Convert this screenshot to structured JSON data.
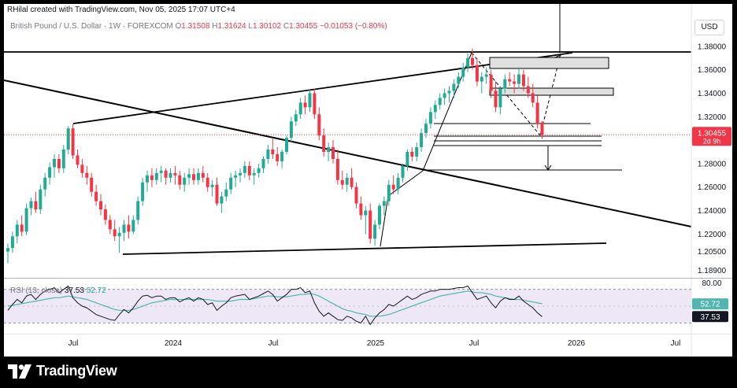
{
  "attribution": "RHilal created with TradingView.com, Nov 05, 2025 17:07 UTC+4",
  "legend": {
    "symbol": "British Pound / U.S. Dollar · 1W · FOREXCOM",
    "open_label": "O",
    "open": "1.31508",
    "high_label": "H",
    "high": "1.31624",
    "low_label": "L",
    "low": "1.30102",
    "close_label": "C",
    "close": "1.30455",
    "change": "−0.01053 (−0.80%)"
  },
  "currency_badge": "USD",
  "price_axis": {
    "ticks": [
      "1.38000",
      "1.36000",
      "1.34000",
      "1.32000",
      "1.28000",
      "1.26000",
      "1.24000",
      "1.22000",
      "1.20500",
      "1.18900"
    ],
    "current_price": "1.30455",
    "countdown": "2d 9h"
  },
  "time_axis": [
    "Jul",
    "2024",
    "Jul",
    "2025",
    "Jul",
    "2026",
    "Jul"
  ],
  "rsi": {
    "label": "RSI (13, close)",
    "value": "37.53",
    "ma_value": "52.72",
    "top_tick": "80.00"
  },
  "colors": {
    "bull": "#22ab94",
    "bear": "#f23645",
    "rsi_line": "#131722",
    "rsi_ma": "#4fb7b0",
    "rsi_band": "#ede7f6",
    "price_line": "#f23645"
  },
  "footer": {
    "brand": "TradingView"
  },
  "chart_data": {
    "type": "candlestick",
    "series_kind": "weekly OHLC",
    "y_axis_range": [
      1.186,
      1.398
    ],
    "current_close": 1.30455,
    "candles": [
      [
        1.205,
        1.212,
        1.195,
        1.208
      ],
      [
        1.208,
        1.222,
        1.204,
        1.218
      ],
      [
        1.218,
        1.232,
        1.212,
        1.228
      ],
      [
        1.228,
        1.236,
        1.218,
        1.222
      ],
      [
        1.222,
        1.246,
        1.219,
        1.242
      ],
      [
        1.242,
        1.251,
        1.236,
        1.248
      ],
      [
        1.248,
        1.256,
        1.238,
        1.241
      ],
      [
        1.241,
        1.262,
        1.237,
        1.258
      ],
      [
        1.258,
        1.272,
        1.252,
        1.268
      ],
      [
        1.268,
        1.281,
        1.262,
        1.277
      ],
      [
        1.277,
        1.288,
        1.268,
        1.284
      ],
      [
        1.284,
        1.288,
        1.272,
        1.276
      ],
      [
        1.276,
        1.296,
        1.272,
        1.292
      ],
      [
        1.292,
        1.312,
        1.288,
        1.31
      ],
      [
        1.31,
        1.314,
        1.284,
        1.287
      ],
      [
        1.287,
        1.292,
        1.276,
        1.279
      ],
      [
        1.279,
        1.284,
        1.268,
        1.272
      ],
      [
        1.272,
        1.278,
        1.262,
        1.268
      ],
      [
        1.268,
        1.272,
        1.252,
        1.256
      ],
      [
        1.256,
        1.262,
        1.244,
        1.248
      ],
      [
        1.248,
        1.254,
        1.236,
        1.241
      ],
      [
        1.241,
        1.245,
        1.228,
        1.232
      ],
      [
        1.232,
        1.236,
        1.22,
        1.224
      ],
      [
        1.224,
        1.232,
        1.214,
        1.218
      ],
      [
        1.218,
        1.226,
        1.204,
        1.221
      ],
      [
        1.221,
        1.232,
        1.214,
        1.228
      ],
      [
        1.228,
        1.236,
        1.216,
        1.222
      ],
      [
        1.222,
        1.236,
        1.22,
        1.232
      ],
      [
        1.232,
        1.252,
        1.228,
        1.248
      ],
      [
        1.248,
        1.268,
        1.244,
        1.264
      ],
      [
        1.264,
        1.274,
        1.256,
        1.27
      ],
      [
        1.27,
        1.276,
        1.26,
        1.266
      ],
      [
        1.266,
        1.276,
        1.262,
        1.272
      ],
      [
        1.272,
        1.278,
        1.264,
        1.274
      ],
      [
        1.274,
        1.276,
        1.262,
        1.268
      ],
      [
        1.268,
        1.276,
        1.264,
        1.272
      ],
      [
        1.272,
        1.278,
        1.262,
        1.27
      ],
      [
        1.27,
        1.274,
        1.258,
        1.262
      ],
      [
        1.262,
        1.272,
        1.256,
        1.268
      ],
      [
        1.268,
        1.276,
        1.262,
        1.271
      ],
      [
        1.271,
        1.276,
        1.262,
        1.266
      ],
      [
        1.266,
        1.276,
        1.262,
        1.272
      ],
      [
        1.272,
        1.278,
        1.264,
        1.268
      ],
      [
        1.268,
        1.272,
        1.256,
        1.26
      ],
      [
        1.26,
        1.266,
        1.252,
        1.262
      ],
      [
        1.262,
        1.268,
        1.244,
        1.246
      ],
      [
        1.246,
        1.256,
        1.238,
        1.252
      ],
      [
        1.252,
        1.264,
        1.248,
        1.258
      ],
      [
        1.258,
        1.272,
        1.254,
        1.268
      ],
      [
        1.268,
        1.274,
        1.26,
        1.27
      ],
      [
        1.27,
        1.276,
        1.264,
        1.272
      ],
      [
        1.272,
        1.282,
        1.268,
        1.278
      ],
      [
        1.278,
        1.282,
        1.266,
        1.27
      ],
      [
        1.27,
        1.276,
        1.262,
        1.272
      ],
      [
        1.272,
        1.28,
        1.268,
        1.276
      ],
      [
        1.276,
        1.286,
        1.272,
        1.284
      ],
      [
        1.284,
        1.296,
        1.28,
        1.292
      ],
      [
        1.292,
        1.302,
        1.284,
        1.288
      ],
      [
        1.288,
        1.294,
        1.278,
        1.282
      ],
      [
        1.282,
        1.292,
        1.276,
        1.29
      ],
      [
        1.29,
        1.304,
        1.288,
        1.302
      ],
      [
        1.302,
        1.32,
        1.298,
        1.316
      ],
      [
        1.316,
        1.326,
        1.312,
        1.322
      ],
      [
        1.322,
        1.336,
        1.318,
        1.332
      ],
      [
        1.332,
        1.338,
        1.322,
        1.328
      ],
      [
        1.328,
        1.343,
        1.324,
        1.34
      ],
      [
        1.34,
        1.344,
        1.318,
        1.322
      ],
      [
        1.322,
        1.328,
        1.3,
        1.304
      ],
      [
        1.304,
        1.31,
        1.286,
        1.29
      ],
      [
        1.29,
        1.298,
        1.282,
        1.294
      ],
      [
        1.294,
        1.3,
        1.28,
        1.284
      ],
      [
        1.284,
        1.292,
        1.262,
        1.266
      ],
      [
        1.266,
        1.274,
        1.258,
        1.262
      ],
      [
        1.262,
        1.272,
        1.256,
        1.268
      ],
      [
        1.268,
        1.276,
        1.258,
        1.26
      ],
      [
        1.26,
        1.264,
        1.242,
        1.246
      ],
      [
        1.246,
        1.252,
        1.232,
        1.236
      ],
      [
        1.236,
        1.244,
        1.22,
        1.24
      ],
      [
        1.24,
        1.246,
        1.212,
        1.216
      ],
      [
        1.216,
        1.232,
        1.21,
        1.228
      ],
      [
        1.228,
        1.246,
        1.224,
        1.244
      ],
      [
        1.244,
        1.252,
        1.236,
        1.248
      ],
      [
        1.248,
        1.266,
        1.244,
        1.262
      ],
      [
        1.262,
        1.27,
        1.254,
        1.258
      ],
      [
        1.258,
        1.272,
        1.254,
        1.268
      ],
      [
        1.268,
        1.28,
        1.264,
        1.278
      ],
      [
        1.278,
        1.292,
        1.274,
        1.29
      ],
      [
        1.29,
        1.294,
        1.282,
        1.286
      ],
      [
        1.286,
        1.298,
        1.282,
        1.294
      ],
      [
        1.294,
        1.31,
        1.29,
        1.306
      ],
      [
        1.306,
        1.318,
        1.302,
        1.314
      ],
      [
        1.314,
        1.328,
        1.31,
        1.324
      ],
      [
        1.324,
        1.334,
        1.318,
        1.33
      ],
      [
        1.33,
        1.34,
        1.326,
        1.336
      ],
      [
        1.336,
        1.344,
        1.33,
        1.34
      ],
      [
        1.34,
        1.346,
        1.332,
        1.342
      ],
      [
        1.342,
        1.352,
        1.336,
        1.348
      ],
      [
        1.348,
        1.358,
        1.344,
        1.354
      ],
      [
        1.354,
        1.366,
        1.35,
        1.362
      ],
      [
        1.362,
        1.374,
        1.358,
        1.37
      ],
      [
        1.37,
        1.378,
        1.36,
        1.364
      ],
      [
        1.364,
        1.37,
        1.346,
        1.35
      ],
      [
        1.35,
        1.358,
        1.34,
        1.354
      ],
      [
        1.354,
        1.362,
        1.348,
        1.356
      ],
      [
        1.356,
        1.36,
        1.336,
        1.342
      ],
      [
        1.342,
        1.35,
        1.324,
        1.328
      ],
      [
        1.328,
        1.346,
        1.322,
        1.344
      ],
      [
        1.344,
        1.356,
        1.34,
        1.352
      ],
      [
        1.352,
        1.358,
        1.346,
        1.35
      ],
      [
        1.35,
        1.356,
        1.34,
        1.348
      ],
      [
        1.348,
        1.362,
        1.344,
        1.356
      ],
      [
        1.356,
        1.36,
        1.342,
        1.346
      ],
      [
        1.346,
        1.354,
        1.336,
        1.34
      ],
      [
        1.34,
        1.348,
        1.328,
        1.332
      ],
      [
        1.332,
        1.338,
        1.31,
        1.314
      ],
      [
        1.31508,
        1.31624,
        1.30102,
        1.30455
      ]
    ],
    "rsi": [
      45,
      52,
      58,
      54,
      62,
      64,
      58,
      64,
      68,
      70,
      72,
      66,
      70,
      74,
      60,
      54,
      50,
      48,
      44,
      40,
      38,
      36,
      34,
      33,
      40,
      46,
      42,
      48,
      56,
      62,
      63,
      60,
      62,
      62,
      58,
      60,
      60,
      55,
      58,
      60,
      56,
      60,
      58,
      52,
      54,
      45,
      50,
      54,
      60,
      62,
      63,
      64,
      58,
      60,
      62,
      65,
      68,
      64,
      56,
      60,
      64,
      70,
      70,
      72,
      66,
      68,
      54,
      44,
      38,
      42,
      38,
      34,
      33,
      38,
      36,
      32,
      30,
      38,
      28,
      36,
      42,
      46,
      52,
      50,
      54,
      58,
      62,
      58,
      60,
      64,
      66,
      68,
      68,
      70,
      70,
      70,
      71,
      72,
      72,
      74,
      66,
      58,
      60,
      62,
      54,
      48,
      56,
      60,
      58,
      58,
      62,
      56,
      52,
      48,
      42,
      37.53
    ],
    "rsi_ma": [
      50,
      51,
      52,
      53,
      54,
      55,
      56,
      57,
      58,
      59,
      60,
      60,
      61,
      62,
      61,
      60,
      59,
      58,
      56,
      54,
      52,
      50,
      48,
      46,
      45,
      45,
      45,
      46,
      48,
      50,
      52,
      54,
      55,
      56,
      57,
      58,
      58,
      58,
      58,
      58,
      58,
      58,
      58,
      58,
      57,
      56,
      56,
      56,
      56,
      57,
      58,
      58,
      58,
      59,
      60,
      61,
      62,
      62,
      61,
      61,
      61,
      62,
      63,
      64,
      64,
      65,
      64,
      62,
      59,
      56,
      53,
      50,
      47,
      45,
      44,
      42,
      41,
      40,
      38,
      38,
      38,
      39,
      40,
      42,
      44,
      46,
      48,
      50,
      52,
      54,
      56,
      58,
      60,
      62,
      63,
      64,
      65,
      66,
      67,
      68,
      67,
      66,
      66,
      65,
      64,
      62,
      61,
      60,
      59,
      58,
      58,
      57,
      56,
      55,
      54,
      52.72
    ],
    "rsi_levels": [
      70,
      30
    ],
    "rsi_axis_range": [
      20,
      80
    ]
  }
}
